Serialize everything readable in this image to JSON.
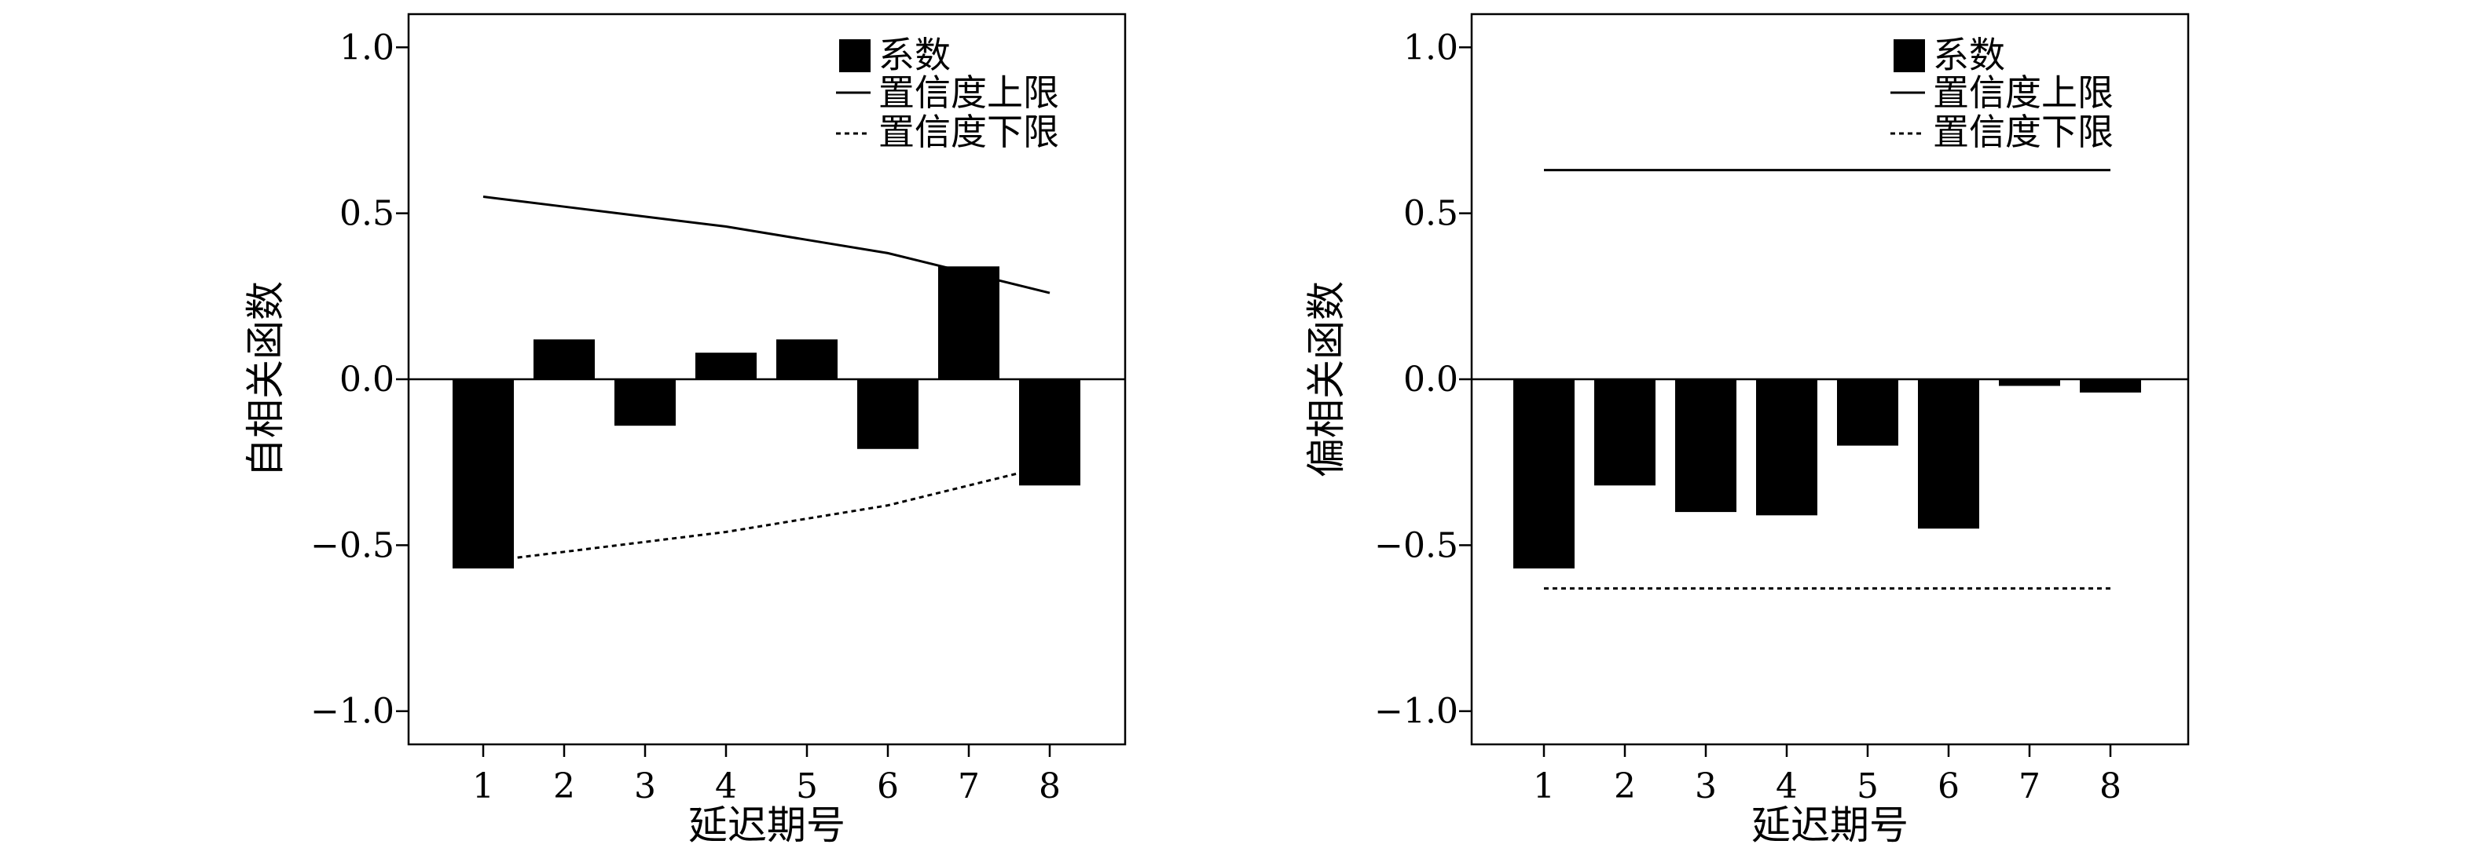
{
  "chart_data": [
    {
      "type": "bar",
      "xlabel": "延迟期号",
      "ylabel": "自相关函数",
      "categories": [
        "1",
        "2",
        "3",
        "4",
        "5",
        "6",
        "7",
        "8"
      ],
      "series": [
        {
          "name": "系数",
          "values": [
            -0.57,
            0.12,
            -0.14,
            0.08,
            0.12,
            -0.21,
            0.34,
            -0.32
          ]
        }
      ],
      "upper_limit": {
        "name": "置信度上限",
        "values": [
          0.55,
          0.52,
          0.49,
          0.46,
          0.42,
          0.38,
          0.32,
          0.26
        ]
      },
      "lower_limit": {
        "name": "置信度下限",
        "values": [
          -0.55,
          -0.52,
          -0.49,
          -0.46,
          -0.42,
          -0.38,
          -0.32,
          -0.26
        ]
      },
      "yticks": [
        "1.0",
        "0.5",
        "0.0",
        "−0.5",
        "−1.0"
      ],
      "ylim": [
        -1.1,
        1.1
      ],
      "grid": false,
      "legend_position": "top-right",
      "bar_color": "#000000"
    },
    {
      "type": "bar",
      "xlabel": "延迟期号",
      "ylabel": "偏相关函数",
      "categories": [
        "1",
        "2",
        "3",
        "4",
        "5",
        "6",
        "7",
        "8"
      ],
      "series": [
        {
          "name": "系数",
          "values": [
            -0.57,
            -0.32,
            -0.4,
            -0.41,
            -0.2,
            -0.45,
            -0.02,
            -0.04
          ]
        }
      ],
      "upper_limit": {
        "name": "置信度上限",
        "values": [
          0.63,
          0.63,
          0.63,
          0.63,
          0.63,
          0.63,
          0.63,
          0.63
        ]
      },
      "lower_limit": {
        "name": "置信度下限",
        "values": [
          -0.63,
          -0.63,
          -0.63,
          -0.63,
          -0.63,
          -0.63,
          -0.63,
          -0.63
        ]
      },
      "yticks": [
        "1.0",
        "0.5",
        "0.0",
        "−0.5",
        "−1.0"
      ],
      "ylim": [
        -1.1,
        1.1
      ],
      "grid": false,
      "legend_position": "top-right",
      "bar_color": "#000000"
    }
  ]
}
